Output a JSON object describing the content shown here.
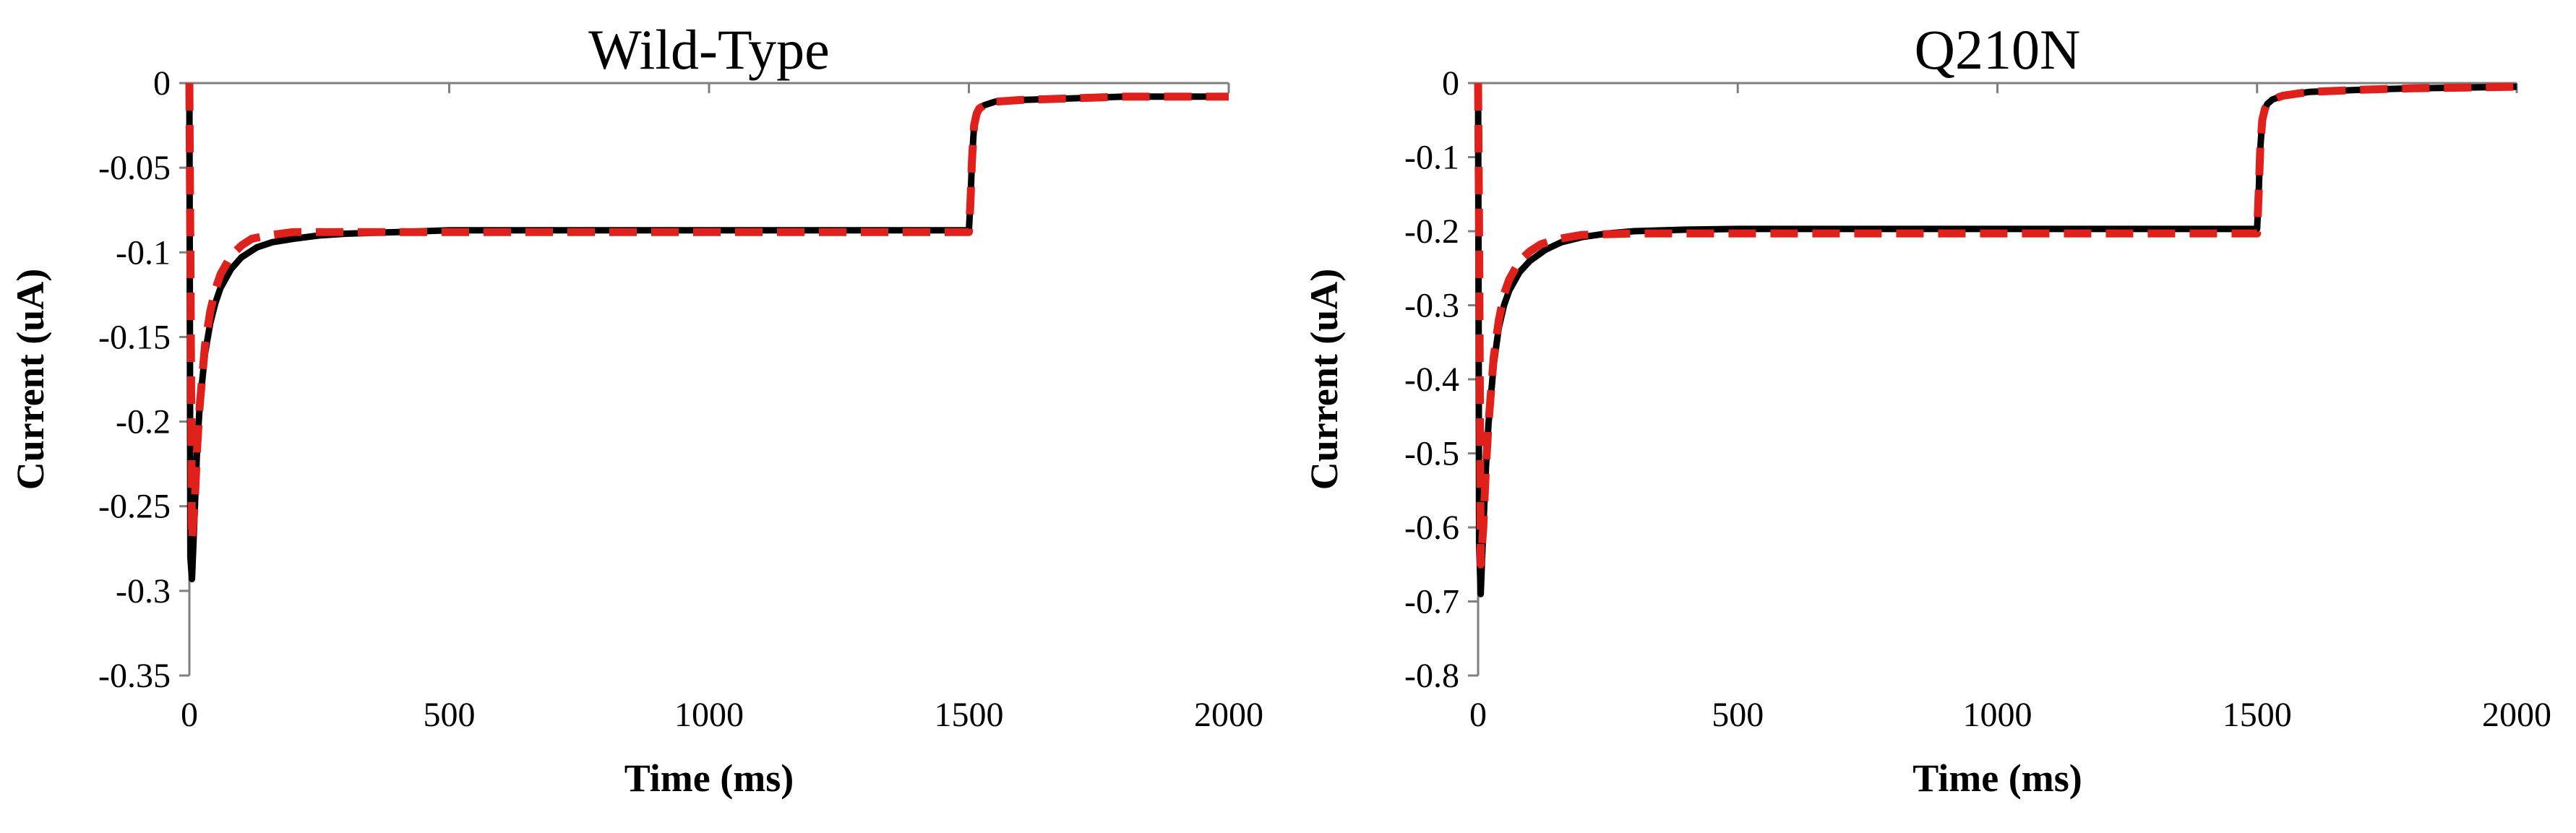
{
  "colors": {
    "measured": "#000000",
    "fit": "#e0201b",
    "axis": "#7f7f7f"
  },
  "chart_data": [
    {
      "type": "line",
      "title": "Wild-Type",
      "xlabel": "Time (ms)",
      "ylabel": "Current (uA)",
      "xlim": [
        0,
        2000
      ],
      "ylim": [
        -0.35,
        0
      ],
      "xticks": [
        0,
        500,
        1000,
        1500,
        2000
      ],
      "xtick_labels": [
        "0",
        "500",
        "1000",
        "1500",
        "2000"
      ],
      "yticks": [
        0,
        -0.05,
        -0.1,
        -0.15,
        -0.2,
        -0.25,
        -0.3,
        -0.35
      ],
      "ytick_labels": [
        "0",
        "-0.05",
        "-0.1",
        "-0.15",
        "-0.2",
        "-0.25",
        "-0.3",
        "-0.35"
      ],
      "legend": "none",
      "grid": false,
      "series": [
        {
          "style": "solid",
          "color": "#000000",
          "x": [
            0,
            2,
            5,
            10,
            15,
            20,
            30,
            40,
            50,
            60,
            80,
            100,
            130,
            160,
            200,
            250,
            300,
            400,
            500,
            600,
            800,
            1000,
            1200,
            1400,
            1495,
            1500,
            1503,
            1506,
            1510,
            1515,
            1520,
            1530,
            1550,
            1600,
            1700,
            1800,
            1900,
            2000
          ],
          "y": [
            0,
            -0.28,
            -0.293,
            -0.255,
            -0.215,
            -0.19,
            -0.16,
            -0.142,
            -0.13,
            -0.121,
            -0.11,
            -0.103,
            -0.097,
            -0.094,
            -0.092,
            -0.09,
            -0.089,
            -0.088,
            -0.087,
            -0.087,
            -0.087,
            -0.087,
            -0.087,
            -0.087,
            -0.087,
            -0.087,
            -0.07,
            -0.045,
            -0.025,
            -0.018,
            -0.015,
            -0.013,
            -0.011,
            -0.01,
            -0.009,
            -0.008,
            -0.008,
            -0.008
          ]
        },
        {
          "style": "dashed",
          "color": "#e0201b",
          "x": [
            0,
            2,
            5,
            10,
            15,
            20,
            30,
            40,
            50,
            60,
            80,
            100,
            120,
            150,
            200,
            250,
            300,
            400,
            600,
            1000,
            1400,
            1495,
            1500,
            1503,
            1506,
            1510,
            1515,
            1520,
            1530,
            1550,
            1600,
            1700,
            1800,
            1900,
            2000
          ],
          "y": [
            0,
            -0.1,
            -0.27,
            -0.25,
            -0.215,
            -0.19,
            -0.155,
            -0.135,
            -0.122,
            -0.113,
            -0.102,
            -0.096,
            -0.092,
            -0.09,
            -0.088,
            -0.088,
            -0.088,
            -0.088,
            -0.088,
            -0.088,
            -0.088,
            -0.088,
            -0.088,
            -0.07,
            -0.045,
            -0.025,
            -0.018,
            -0.015,
            -0.013,
            -0.011,
            -0.01,
            -0.009,
            -0.008,
            -0.008,
            -0.008
          ]
        }
      ]
    },
    {
      "type": "line",
      "title": "Q210N",
      "xlabel": "Time (ms)",
      "ylabel": "Current (uA)",
      "xlim": [
        0,
        2000
      ],
      "ylim": [
        -0.8,
        0
      ],
      "xticks": [
        0,
        500,
        1000,
        1500,
        2000
      ],
      "xtick_labels": [
        "0",
        "500",
        "1000",
        "1500",
        "2000"
      ],
      "yticks": [
        0,
        -0.1,
        -0.2,
        -0.3,
        -0.4,
        -0.5,
        -0.6,
        -0.7,
        -0.8
      ],
      "ytick_labels": [
        "0",
        "-0.1",
        "-0.2",
        "-0.3",
        "-0.4",
        "-0.5",
        "-0.6",
        "-0.7",
        "-0.8"
      ],
      "legend": "none",
      "grid": false,
      "series": [
        {
          "style": "solid",
          "color": "#000000",
          "x": [
            0,
            2,
            5,
            10,
            15,
            20,
            30,
            40,
            50,
            60,
            80,
            100,
            130,
            160,
            200,
            250,
            300,
            400,
            500,
            600,
            800,
            1000,
            1200,
            1400,
            1495,
            1500,
            1503,
            1506,
            1510,
            1515,
            1520,
            1530,
            1550,
            1600,
            1700,
            1800,
            1900,
            2000
          ],
          "y": [
            0,
            -0.62,
            -0.69,
            -0.6,
            -0.52,
            -0.46,
            -0.38,
            -0.33,
            -0.3,
            -0.28,
            -0.255,
            -0.24,
            -0.225,
            -0.215,
            -0.208,
            -0.203,
            -0.2,
            -0.198,
            -0.197,
            -0.197,
            -0.197,
            -0.197,
            -0.197,
            -0.197,
            -0.197,
            -0.197,
            -0.15,
            -0.09,
            -0.05,
            -0.035,
            -0.028,
            -0.022,
            -0.017,
            -0.012,
            -0.009,
            -0.007,
            -0.006,
            -0.005
          ]
        },
        {
          "style": "dashed",
          "color": "#e0201b",
          "x": [
            0,
            2,
            5,
            10,
            15,
            20,
            30,
            40,
            50,
            60,
            80,
            100,
            120,
            150,
            200,
            250,
            300,
            400,
            600,
            1000,
            1400,
            1495,
            1500,
            1503,
            1506,
            1510,
            1515,
            1520,
            1530,
            1550,
            1600,
            1700,
            1800,
            1900,
            2000
          ],
          "y": [
            0,
            -0.2,
            -0.65,
            -0.6,
            -0.52,
            -0.46,
            -0.37,
            -0.32,
            -0.285,
            -0.265,
            -0.24,
            -0.227,
            -0.218,
            -0.211,
            -0.205,
            -0.204,
            -0.203,
            -0.203,
            -0.203,
            -0.203,
            -0.203,
            -0.203,
            -0.203,
            -0.15,
            -0.09,
            -0.05,
            -0.035,
            -0.028,
            -0.022,
            -0.017,
            -0.012,
            -0.009,
            -0.007,
            -0.006,
            -0.005
          ]
        }
      ]
    }
  ]
}
